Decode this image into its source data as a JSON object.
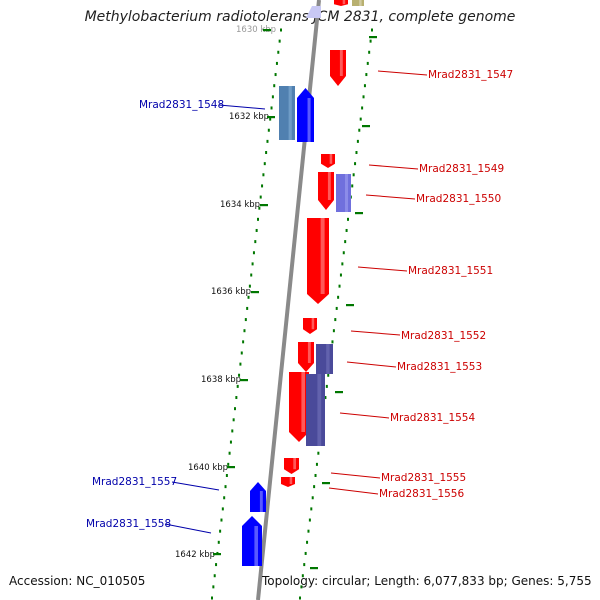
{
  "title": "Methylobacterium radiotolerans JCM 2831, complete genome",
  "footer": {
    "accession": "Accession: NC_010505",
    "stats": "Topology: circular; Length: 6,077,833 bp; Genes: 5,755"
  },
  "colors": {
    "backbone": "#888888",
    "forward_gene": "#ff0000",
    "reverse_gene": "#0000ff",
    "forward_label": "#cc0000",
    "reverse_label": "#0000aa",
    "tick": "#007700",
    "rna_or_other_outer": "#7070dd",
    "rna_or_other_inner": "#5080b0",
    "olive_feature": "#b8b070"
  },
  "scale_ticks": [
    "1630 kbp",
    "1632 kbp",
    "1634 kbp",
    "1636 kbp",
    "1638 kbp",
    "1640 kbp",
    "1642 kbp"
  ],
  "genes": [
    {
      "label": "Mrad2831_1547",
      "strand": "+"
    },
    {
      "label": "Mrad2831_1548",
      "strand": "-"
    },
    {
      "label": "Mrad2831_1549",
      "strand": "+"
    },
    {
      "label": "Mrad2831_1550",
      "strand": "+"
    },
    {
      "label": "Mrad2831_1551",
      "strand": "+"
    },
    {
      "label": "Mrad2831_1552",
      "strand": "+"
    },
    {
      "label": "Mrad2831_1553",
      "strand": "+"
    },
    {
      "label": "Mrad2831_1554",
      "strand": "+"
    },
    {
      "label": "Mrad2831_1555",
      "strand": "+"
    },
    {
      "label": "Mrad2831_1556",
      "strand": "+"
    },
    {
      "label": "Mrad2831_1557",
      "strand": "-"
    },
    {
      "label": "Mrad2831_1558",
      "strand": "-"
    }
  ]
}
